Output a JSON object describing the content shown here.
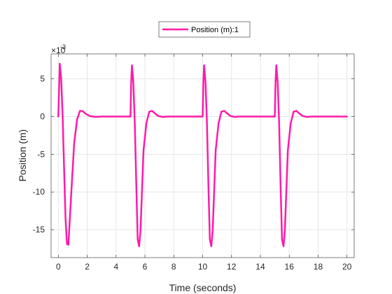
{
  "chart_data": {
    "type": "line",
    "title": "",
    "xlabel": "Time (seconds)",
    "ylabel": "Position (m)",
    "y_exponent_label": "×10",
    "y_exponent_power": "-3",
    "xlim": [
      -0.5,
      20.5
    ],
    "ylim": [
      -18.7,
      8.3
    ],
    "x_ticks": [
      0,
      2,
      4,
      6,
      8,
      10,
      12,
      14,
      16,
      18,
      20
    ],
    "x_tick_labels": [
      "0",
      "2",
      "4",
      "6",
      "8",
      "10",
      "12",
      "14",
      "16",
      "18",
      "20"
    ],
    "y_ticks": [
      -15,
      -10,
      -5,
      0,
      5
    ],
    "y_tick_labels": [
      "-15",
      "-10",
      "-5",
      "0",
      "5"
    ],
    "grid": true,
    "legend_position": "top-center",
    "colors": {
      "series": "#ff1aa8",
      "grid": "#e6e6e6",
      "axis": "#262626"
    },
    "series": [
      {
        "name": "Position (m):1",
        "x": [
          0,
          0.1,
          0.2,
          0.3,
          0.4,
          0.5,
          0.6,
          0.7,
          0.9,
          1.1,
          1.3,
          1.5,
          1.7,
          1.9,
          2.2,
          2.6,
          3.0,
          4.0,
          5.0,
          5.05,
          5.1,
          5.2,
          5.3,
          5.4,
          5.5,
          5.6,
          5.7,
          5.9,
          6.1,
          6.3,
          6.5,
          6.7,
          6.9,
          7.2,
          7.6,
          8.0,
          9.0,
          10.0,
          10.05,
          10.1,
          10.2,
          10.3,
          10.4,
          10.5,
          10.6,
          10.7,
          10.9,
          11.1,
          11.3,
          11.5,
          11.7,
          11.9,
          12.2,
          12.6,
          13.0,
          14.0,
          15.0,
          15.05,
          15.1,
          15.2,
          15.3,
          15.4,
          15.5,
          15.6,
          15.7,
          15.9,
          16.1,
          16.3,
          16.5,
          16.7,
          16.9,
          17.2,
          17.6,
          18.0,
          19.0,
          20.0
        ],
        "y": [
          0,
          7.0,
          5.0,
          0,
          -7.0,
          -13.5,
          -16.9,
          -17.0,
          -10.0,
          -3.5,
          -0.4,
          0.75,
          0.7,
          0.35,
          0.05,
          -0.05,
          0,
          0,
          0,
          4.5,
          6.8,
          4.5,
          -1.0,
          -9.0,
          -16.3,
          -17.2,
          -15.0,
          -4.5,
          -0.9,
          0.65,
          0.75,
          0.4,
          0.1,
          -0.05,
          0,
          0,
          0,
          0,
          4.5,
          6.8,
          4.5,
          -1.0,
          -9.0,
          -16.3,
          -17.2,
          -15.0,
          -4.5,
          -0.9,
          0.65,
          0.75,
          0.4,
          0.1,
          -0.05,
          0,
          0,
          0,
          0,
          4.5,
          6.8,
          4.5,
          -1.0,
          -9.0,
          -16.3,
          -17.2,
          -15.0,
          -4.5,
          -0.9,
          0.65,
          0.75,
          0.4,
          0.1,
          -0.05,
          0,
          0,
          0,
          0
        ]
      }
    ]
  }
}
